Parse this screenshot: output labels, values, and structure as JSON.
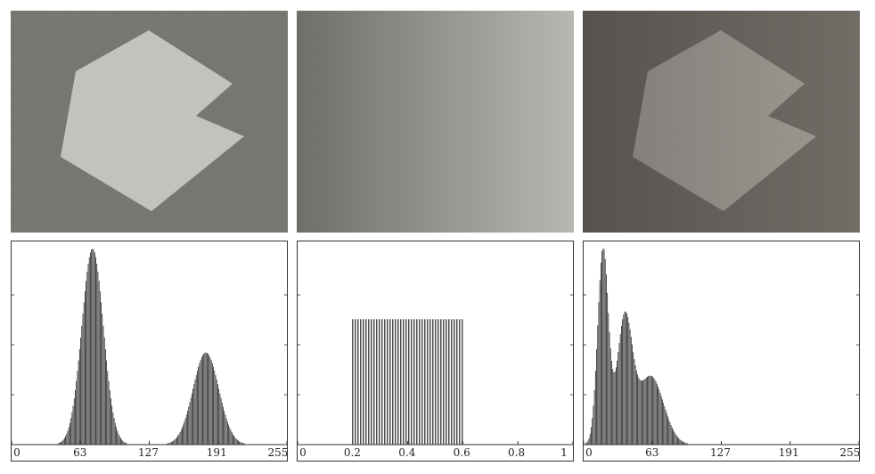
{
  "panels": [
    {
      "image": {
        "type": "noisy-polygon",
        "background": "#7b7a74",
        "polygon_fill": "#c9c8c3"
      },
      "histogram": {
        "ticks": [
          "0",
          "63",
          "127",
          "191",
          "255"
        ],
        "xlim": [
          0,
          255
        ],
        "modes": [
          {
            "center": 75,
            "width": 10,
            "height": 1.0
          },
          {
            "center": 180,
            "width": 12,
            "height": 0.47
          }
        ]
      }
    },
    {
      "image": {
        "type": "gradient",
        "from": "#6f6e69",
        "to": "#b8b7b2"
      },
      "histogram": {
        "ticks": [
          "0",
          "0.2",
          "0.4",
          "0.6",
          "0.8",
          "1"
        ],
        "xlim": [
          0,
          1
        ],
        "uniform": {
          "from": 0.2,
          "to": 0.6,
          "height": 0.64
        }
      }
    },
    {
      "image": {
        "type": "shaded-polygon",
        "background_left": "#57524d",
        "background_right": "#716c66",
        "polygon_fill": "#8e8b86"
      },
      "histogram": {
        "ticks": [
          "0",
          "63",
          "127",
          "191",
          "255"
        ],
        "xlim": [
          0,
          255
        ],
        "modes": [
          {
            "center": 18,
            "width": 5,
            "height": 1.0
          },
          {
            "center": 38,
            "width": 7,
            "height": 0.63
          },
          {
            "center": 62,
            "width": 12,
            "height": 0.35
          }
        ]
      }
    }
  ],
  "colors": {
    "bar": "#222222",
    "axis": "#333333"
  }
}
